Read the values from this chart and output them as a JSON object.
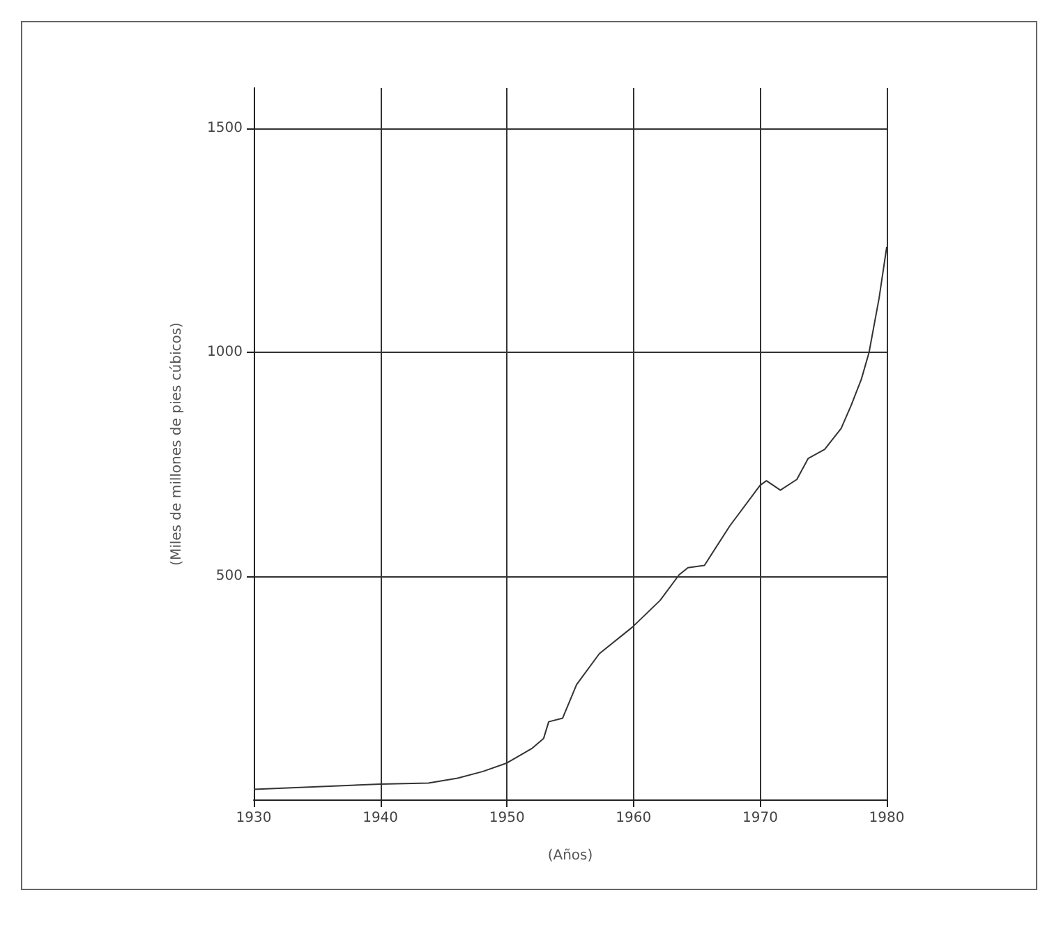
{
  "chart_data": {
    "type": "line",
    "xlabel": "(Años)",
    "ylabel": "(Miles de millones de pies cúbicos)",
    "x": [
      1930,
      1940,
      1943.8,
      1946.1,
      1948.1,
      1950,
      1952,
      1952.9,
      1953.3,
      1954.4,
      1955.5,
      1957.3,
      1959.9,
      1962.1,
      1963.6,
      1964.3,
      1965.6,
      1967.6,
      1970,
      1970.5,
      1971.6,
      1972.9,
      1973.8,
      1975.1,
      1976.4,
      1977.2,
      1978,
      1978.6,
      1979.4,
      1980
    ],
    "series": [
      {
        "color": "#333333",
        "values": [
          24,
          36,
          38,
          49,
          64,
          83,
          116,
          138,
          175,
          183,
          258,
          327,
          386,
          446,
          503,
          519,
          524,
          612,
          703,
          713,
          692,
          716,
          763,
          783,
          830,
          882,
          940,
          999,
          1121,
          1235
        ]
      }
    ],
    "xlim": [
      1930,
      1980
    ],
    "xticks": [
      1930,
      1940,
      1950,
      1960,
      1970,
      1980
    ],
    "ylim": [
      0,
      1590
    ],
    "yticks": [
      500,
      1000,
      1500
    ],
    "grid": true,
    "marker": "none",
    "line_style": "solid"
  }
}
